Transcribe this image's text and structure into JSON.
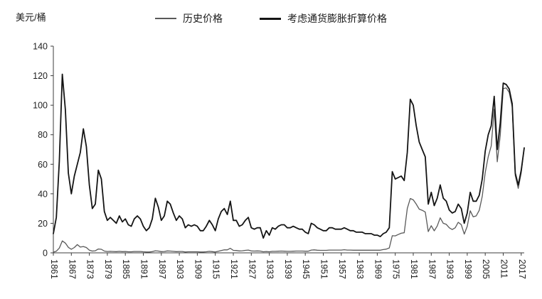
{
  "unit_label": "美元/桶",
  "legend": [
    {
      "label": "历史价格",
      "color": "#595959"
    },
    {
      "label": "考虑通货膨胀折算价格",
      "color": "#141414"
    }
  ],
  "chart_data": {
    "type": "line",
    "title": "",
    "xlabel": "",
    "ylabel": "美元/桶",
    "ylim": [
      0,
      140
    ],
    "yticks": [
      0,
      20,
      40,
      60,
      80,
      100,
      120,
      140
    ],
    "grid": false,
    "legend_position": "top",
    "x_start": 1861,
    "x_end": 2018,
    "xtick_labels": [
      "1861",
      "1867",
      "1873",
      "1879",
      "1885",
      "1891",
      "1897",
      "1903",
      "1909",
      "1915",
      "1921",
      "1927",
      "1933",
      "1939",
      "1945",
      "1951",
      "1957",
      "1963",
      "1969",
      "1975",
      "1981",
      "1987",
      "1993",
      "1999",
      "2005",
      "2011",
      "2017"
    ],
    "series": [
      {
        "name": "历史价格",
        "color": "#595959",
        "width": 1.3,
        "values": [
          0.5,
          1.1,
          3.2,
          8.1,
          6.6,
          3.7,
          2.4,
          3.6,
          5.6,
          3.9,
          4.3,
          3.6,
          1.8,
          1.2,
          1.4,
          2.6,
          2.4,
          1.2,
          0.9,
          1.0,
          0.9,
          0.8,
          1.0,
          0.8,
          0.9,
          0.7,
          0.7,
          0.9,
          0.9,
          0.9,
          0.7,
          0.6,
          0.6,
          0.8,
          1.4,
          1.2,
          0.8,
          0.9,
          1.3,
          1.2,
          1.0,
          0.8,
          0.9,
          0.9,
          0.6,
          0.7,
          0.7,
          0.7,
          0.7,
          0.6,
          0.6,
          0.7,
          1.0,
          0.8,
          0.6,
          1.1,
          1.6,
          2.0,
          2.0,
          3.1,
          1.7,
          1.6,
          1.3,
          1.4,
          1.7,
          1.9,
          1.3,
          1.2,
          1.3,
          1.2,
          0.7,
          0.9,
          0.7,
          1.0,
          1.0,
          1.1,
          1.2,
          1.1,
          1.0,
          1.0,
          1.1,
          1.2,
          1.2,
          1.2,
          1.1,
          1.1,
          1.9,
          2.0,
          1.8,
          1.7,
          1.7,
          1.7,
          1.9,
          1.9,
          1.9,
          1.9,
          1.9,
          2.1,
          1.9,
          1.9,
          1.8,
          1.8,
          1.8,
          1.8,
          1.8,
          1.8,
          1.8,
          1.8,
          1.8,
          1.8,
          2.2,
          2.5,
          3.3,
          11.6,
          11.5,
          12.4,
          13.3,
          13.6,
          30.0,
          36.8,
          35.9,
          33.0,
          29.6,
          28.8,
          27.6,
          14.4,
          18.4,
          14.9,
          18.2,
          23.7,
          20.0,
          19.3,
          17.0,
          15.8,
          17.0,
          20.7,
          19.1,
          12.7,
          18.0,
          28.5,
          24.4,
          25.0,
          28.8,
          38.3,
          54.5,
          65.1,
          72.4,
          97.3,
          61.7,
          79.5,
          111.3,
          111.7,
          108.7,
          99.0,
          52.4,
          43.7,
          54.2,
          71.3
        ]
      },
      {
        "name": "考虑通货膨胀折算价格",
        "color": "#141414",
        "width": 1.8,
        "values": [
          13,
          24,
          62,
          121,
          97,
          54,
          40,
          52,
          60,
          68,
          84,
          72,
          46,
          30,
          33,
          56,
          50,
          28,
          22,
          24,
          22,
          20,
          25,
          21,
          23,
          19,
          18,
          23,
          25,
          23,
          18,
          15,
          17,
          23,
          37,
          31,
          22,
          25,
          35,
          33,
          27,
          22,
          25,
          23,
          17,
          19,
          18,
          19,
          18,
          15,
          15,
          18,
          22,
          19,
          15,
          23,
          28,
          30,
          26,
          35,
          22,
          22,
          18,
          19,
          22,
          24,
          17,
          16,
          17,
          17,
          10,
          15,
          12,
          17,
          16,
          18,
          19,
          19,
          17,
          17,
          18,
          17,
          16,
          16,
          14,
          13,
          20,
          19,
          17,
          16,
          15,
          15,
          17,
          17,
          16,
          16,
          16,
          17,
          16,
          15,
          15,
          14,
          14,
          14,
          13,
          13,
          13,
          12,
          12,
          11,
          13,
          14,
          17,
          55,
          50,
          51,
          52,
          49,
          68,
          104,
          100,
          86,
          75,
          70,
          65,
          33,
          41,
          32,
          37,
          46,
          37,
          35,
          29,
          27,
          28,
          33,
          30,
          20,
          27,
          41,
          35,
          35,
          39,
          50,
          69,
          80,
          86,
          106,
          70,
          88,
          115,
          114,
          111,
          101,
          54,
          46,
          56,
          71
        ]
      }
    ]
  }
}
